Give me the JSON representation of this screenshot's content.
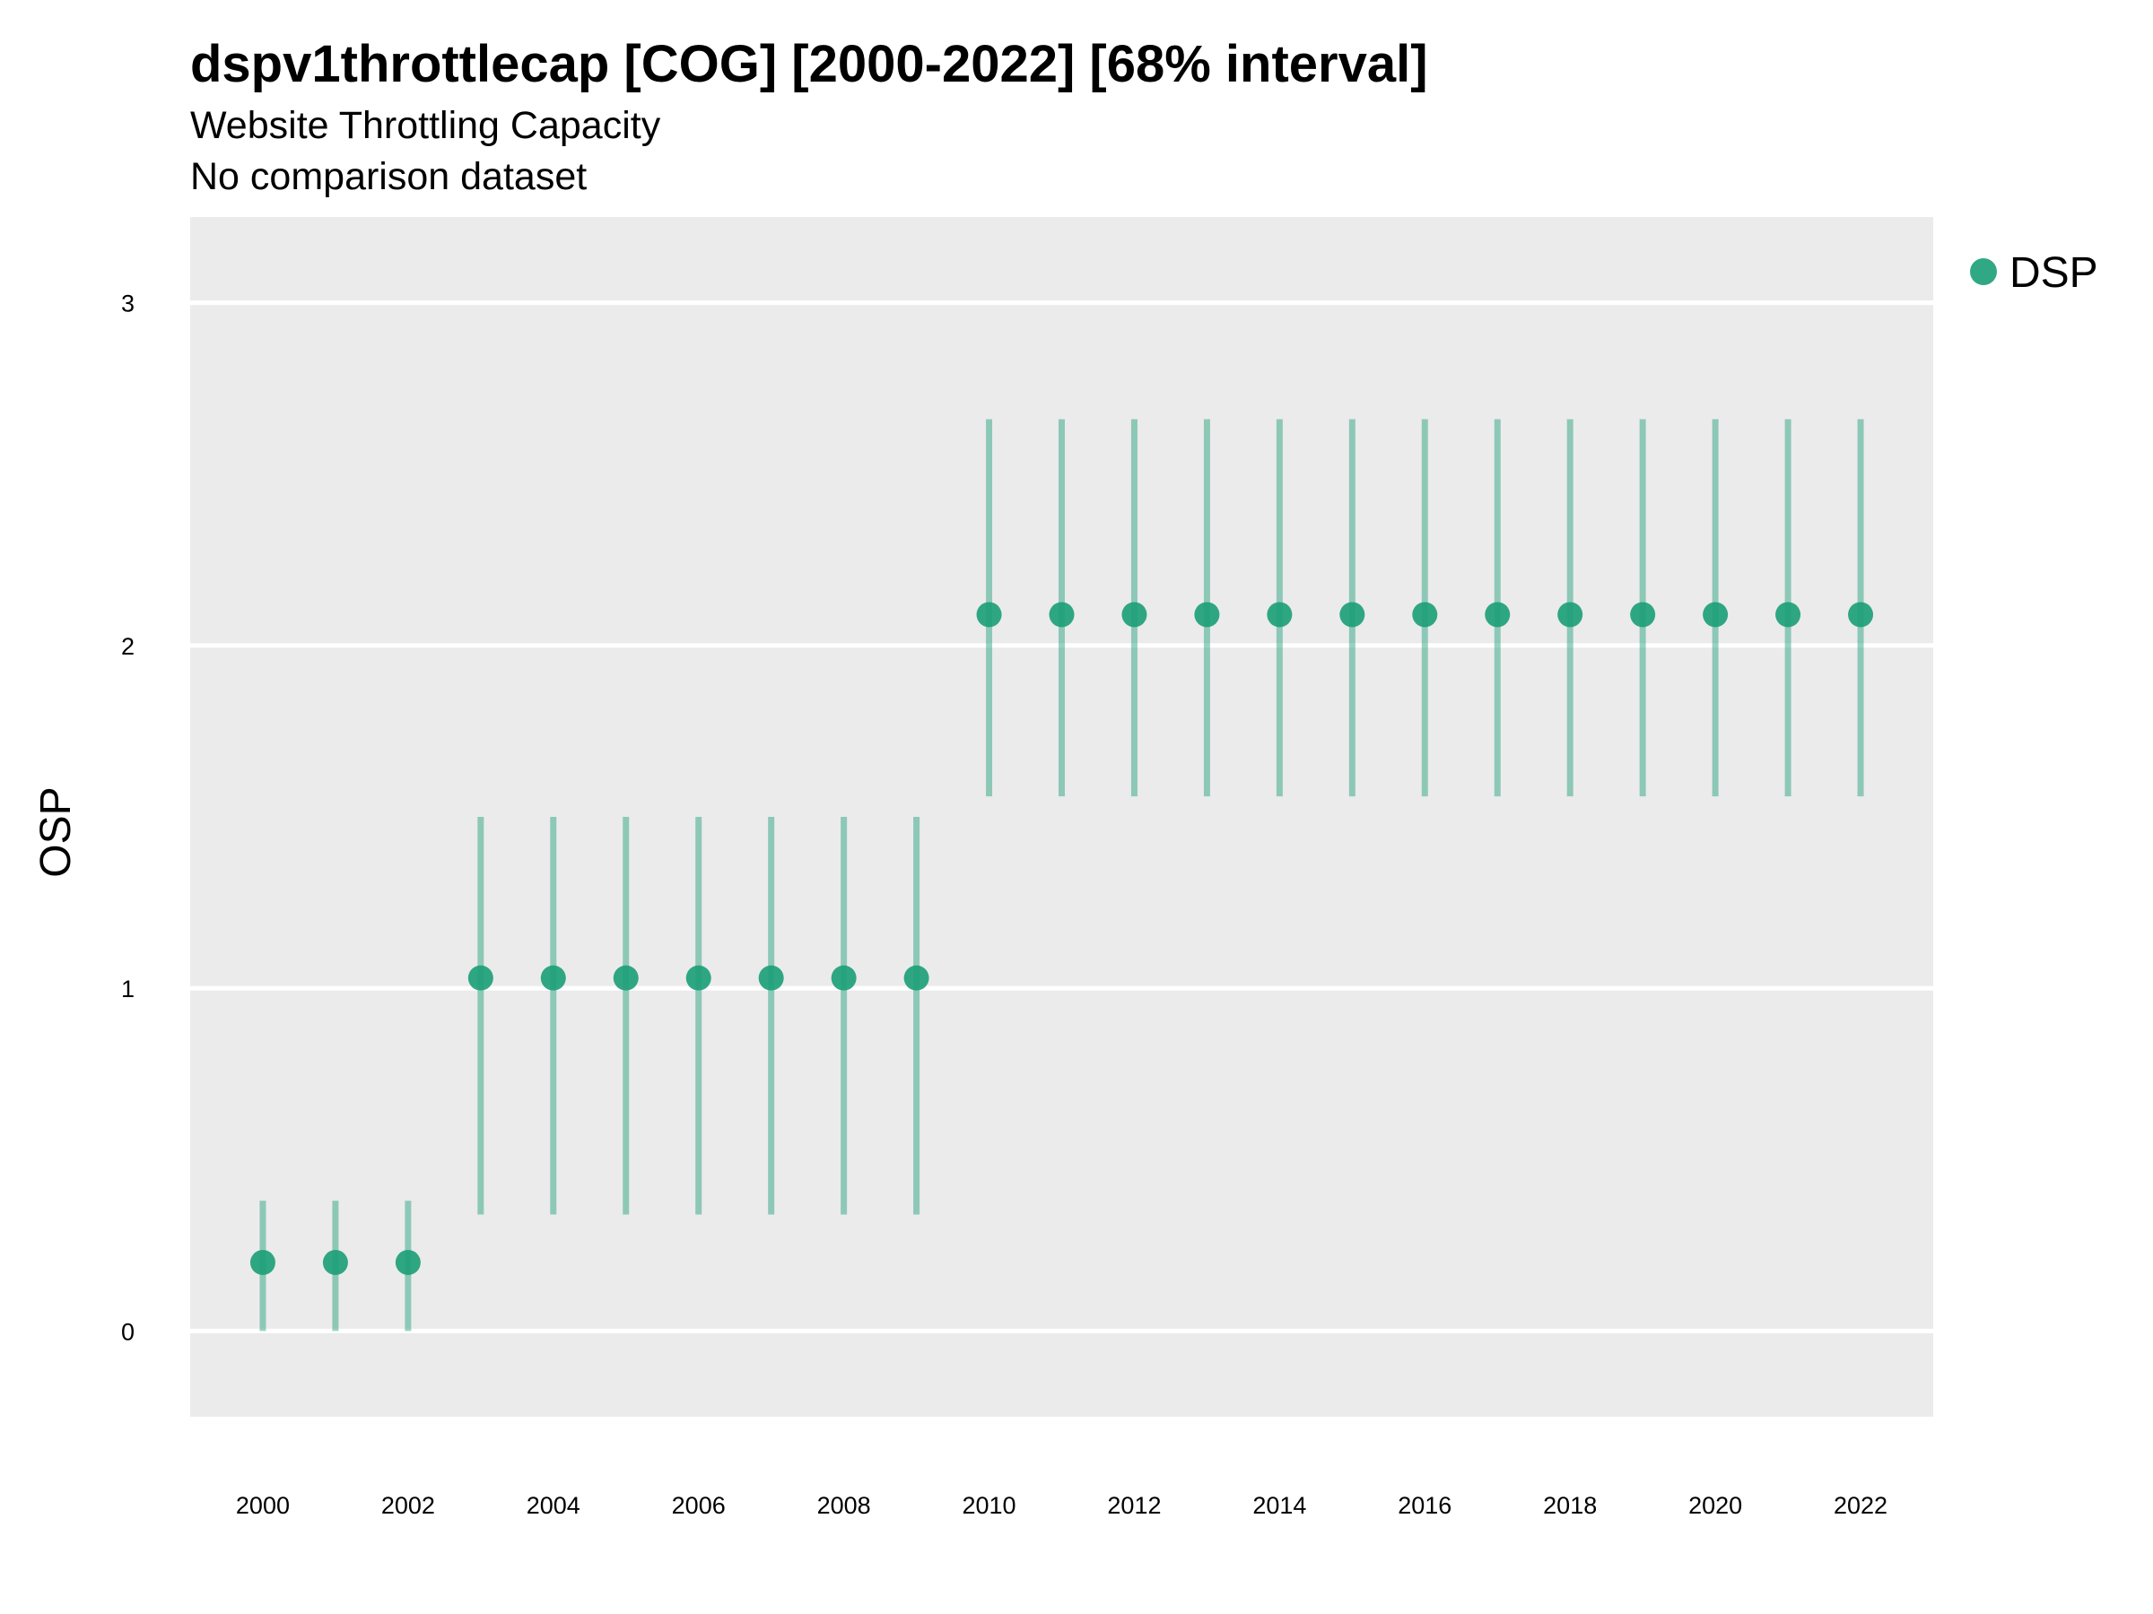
{
  "chart_data": {
    "type": "scatter",
    "title": "dspv1throttlecap [COG] [2000-2022] [68% interval]",
    "subtitle": "Website Throttling Capacity",
    "subtitle2": "No comparison dataset",
    "xlabel": "",
    "ylabel": "OSP",
    "x": [
      2000,
      2001,
      2002,
      2003,
      2004,
      2005,
      2006,
      2007,
      2008,
      2009,
      2010,
      2011,
      2012,
      2013,
      2014,
      2015,
      2016,
      2017,
      2018,
      2019,
      2020,
      2021,
      2022
    ],
    "series": [
      {
        "name": "DSP",
        "color": "#1B9E77",
        "values": [
          0.2,
          0.2,
          0.2,
          1.03,
          1.03,
          1.03,
          1.03,
          1.03,
          1.03,
          1.03,
          2.09,
          2.09,
          2.09,
          2.09,
          2.09,
          2.09,
          2.09,
          2.09,
          2.09,
          2.09,
          2.09,
          2.09,
          2.09
        ],
        "lower": [
          0.0,
          0.0,
          0.0,
          0.34,
          0.34,
          0.34,
          0.34,
          0.34,
          0.34,
          0.34,
          1.56,
          1.56,
          1.56,
          1.56,
          1.56,
          1.56,
          1.56,
          1.56,
          1.56,
          1.56,
          1.56,
          1.56,
          1.56
        ],
        "upper": [
          0.38,
          0.38,
          0.38,
          1.5,
          1.5,
          1.5,
          1.5,
          1.5,
          1.5,
          1.5,
          2.66,
          2.66,
          2.66,
          2.66,
          2.66,
          2.66,
          2.66,
          2.66,
          2.66,
          2.66,
          2.66,
          2.66,
          2.66
        ]
      }
    ],
    "x_ticks": [
      "2000",
      "2002",
      "2004",
      "2006",
      "2008",
      "2010",
      "2012",
      "2014",
      "2016",
      "2018",
      "2020",
      "2022"
    ],
    "y_ticks": [
      "0",
      "1",
      "2",
      "3"
    ],
    "xlim": [
      1999,
      2023
    ],
    "ylim": [
      -0.25,
      3.25
    ],
    "grid": "horizontal",
    "legend_position": "right",
    "panel_color": "#EBEBEB"
  }
}
